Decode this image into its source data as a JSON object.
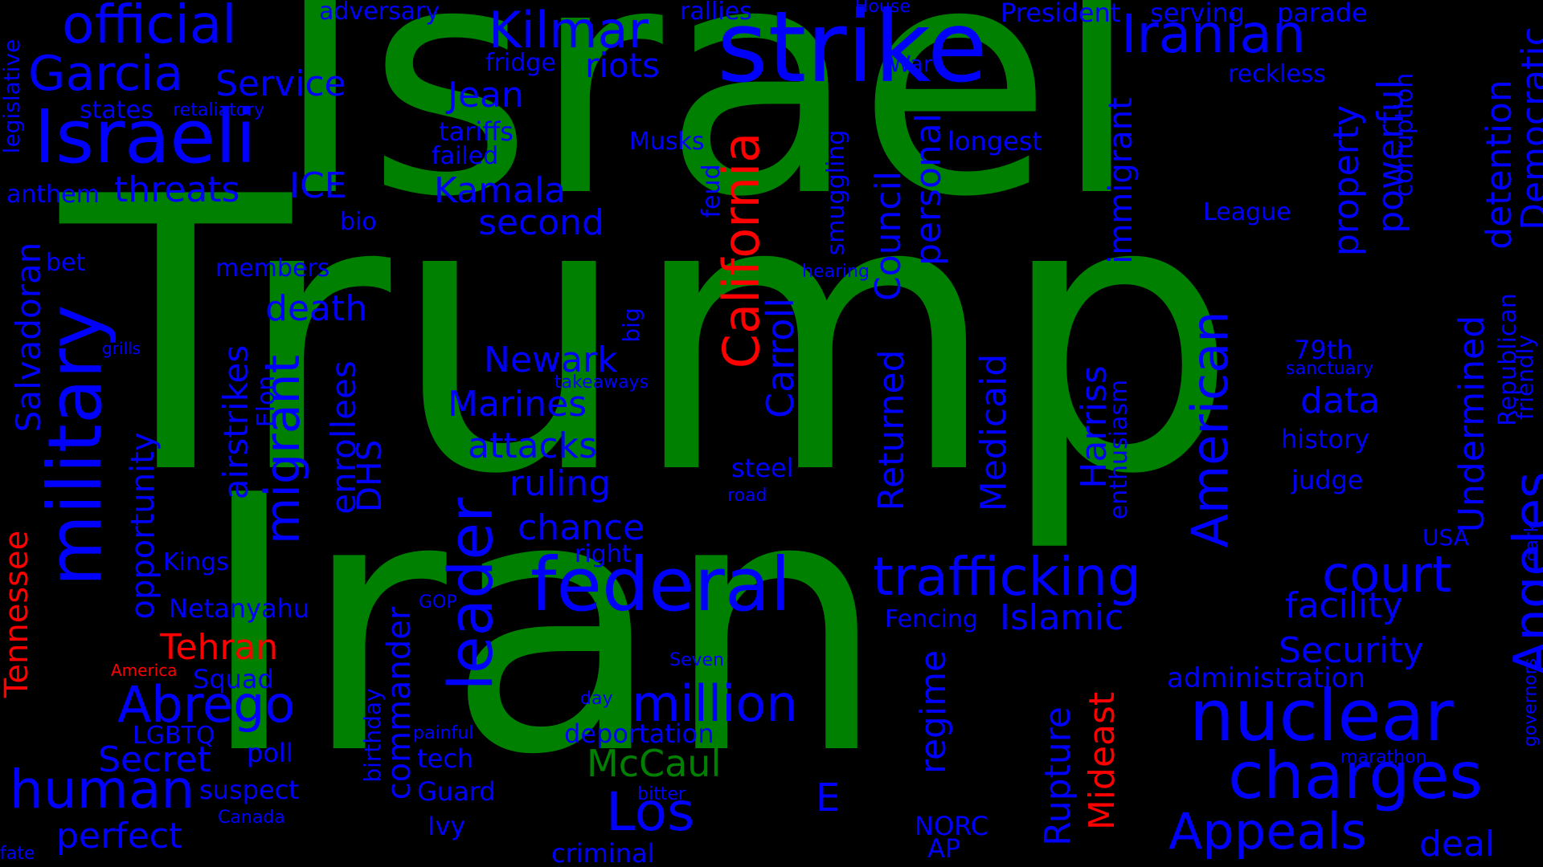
{
  "colors": {
    "background": "#000000",
    "green": "#008000",
    "blue": "#0000ff",
    "red": "#ff0000"
  },
  "words": [
    {
      "key": "trump",
      "text": "Trump",
      "color": "green"
    },
    {
      "key": "israel",
      "text": "Israel",
      "color": "green"
    },
    {
      "key": "iran",
      "text": "Iran",
      "color": "green"
    },
    {
      "key": "strike",
      "text": "strike",
      "color": "blue"
    },
    {
      "key": "iranian",
      "text": "Iranian",
      "color": "blue"
    },
    {
      "key": "official",
      "text": "official",
      "color": "blue"
    },
    {
      "key": "kilmar",
      "text": "Kilmar",
      "color": "blue"
    },
    {
      "key": "garcia",
      "text": "Garcia",
      "color": "blue"
    },
    {
      "key": "service",
      "text": "Service",
      "color": "blue"
    },
    {
      "key": "israeli",
      "text": "Israeli",
      "color": "blue"
    },
    {
      "key": "adversary",
      "text": "adversary",
      "color": "blue"
    },
    {
      "key": "rallies",
      "text": "rallies",
      "color": "blue"
    },
    {
      "key": "house",
      "text": "House",
      "color": "blue"
    },
    {
      "key": "president",
      "text": "President",
      "color": "blue"
    },
    {
      "key": "serving",
      "text": "serving",
      "color": "blue"
    },
    {
      "key": "parade",
      "text": "parade",
      "color": "blue"
    },
    {
      "key": "fridge",
      "text": "fridge",
      "color": "blue"
    },
    {
      "key": "riots",
      "text": "riots",
      "color": "blue"
    },
    {
      "key": "war",
      "text": "War",
      "color": "blue"
    },
    {
      "key": "reckless",
      "text": "reckless",
      "color": "blue"
    },
    {
      "key": "jean",
      "text": "Jean",
      "color": "blue"
    },
    {
      "key": "states",
      "text": "states",
      "color": "blue"
    },
    {
      "key": "retaliatory",
      "text": "retaliatory",
      "color": "blue"
    },
    {
      "key": "tariffs",
      "text": "tariffs",
      "color": "blue"
    },
    {
      "key": "failed",
      "text": "failed",
      "color": "blue"
    },
    {
      "key": "musks",
      "text": "Musks",
      "color": "blue"
    },
    {
      "key": "longest",
      "text": "longest",
      "color": "blue"
    },
    {
      "key": "threats",
      "text": "threats",
      "color": "blue"
    },
    {
      "key": "ice",
      "text": "ICE",
      "color": "blue"
    },
    {
      "key": "kamala",
      "text": "Kamala",
      "color": "blue"
    },
    {
      "key": "anthem",
      "text": "anthem",
      "color": "blue"
    },
    {
      "key": "bio",
      "text": "bio",
      "color": "blue"
    },
    {
      "key": "second",
      "text": "second",
      "color": "blue"
    },
    {
      "key": "league",
      "text": "League",
      "color": "blue"
    },
    {
      "key": "members",
      "text": "members",
      "color": "blue"
    },
    {
      "key": "hearing",
      "text": "hearing",
      "color": "blue"
    },
    {
      "key": "bet",
      "text": "bet",
      "color": "blue"
    },
    {
      "key": "death",
      "text": "death",
      "color": "blue"
    },
    {
      "key": "grills",
      "text": "grills",
      "color": "blue"
    },
    {
      "key": "newark",
      "text": "Newark",
      "color": "blue"
    },
    {
      "key": "takeaways",
      "text": "takeaways",
      "color": "blue"
    },
    {
      "key": "79th",
      "text": "79th",
      "color": "blue"
    },
    {
      "key": "sanctuary",
      "text": "sanctuary",
      "color": "blue"
    },
    {
      "key": "marines",
      "text": "Marines",
      "color": "blue"
    },
    {
      "key": "data",
      "text": "data",
      "color": "blue"
    },
    {
      "key": "history",
      "text": "history",
      "color": "blue"
    },
    {
      "key": "attacks",
      "text": "attacks",
      "color": "blue"
    },
    {
      "key": "steel",
      "text": "steel",
      "color": "blue"
    },
    {
      "key": "judge",
      "text": "judge",
      "color": "blue"
    },
    {
      "key": "ruling",
      "text": "ruling",
      "color": "blue"
    },
    {
      "key": "road",
      "text": "road",
      "color": "blue"
    },
    {
      "key": "chance",
      "text": "chance",
      "color": "blue"
    },
    {
      "key": "usa",
      "text": "USA",
      "color": "blue"
    },
    {
      "key": "kings",
      "text": "Kings",
      "color": "blue"
    },
    {
      "key": "right",
      "text": "right",
      "color": "blue"
    },
    {
      "key": "federal",
      "text": "federal",
      "color": "blue"
    },
    {
      "key": "trafficking",
      "text": "trafficking",
      "color": "blue"
    },
    {
      "key": "court",
      "text": "court",
      "color": "blue"
    },
    {
      "key": "facility",
      "text": "facility",
      "color": "blue"
    },
    {
      "key": "netanyahu",
      "text": "Netanyahu",
      "color": "blue"
    },
    {
      "key": "gop",
      "text": "GOP",
      "color": "blue"
    },
    {
      "key": "fencing",
      "text": "Fencing",
      "color": "blue"
    },
    {
      "key": "islamic",
      "text": "Islamic",
      "color": "blue"
    },
    {
      "key": "security",
      "text": "Security",
      "color": "blue"
    },
    {
      "key": "tehran",
      "text": "Tehran",
      "color": "red"
    },
    {
      "key": "america",
      "text": "America",
      "color": "red"
    },
    {
      "key": "squad",
      "text": "Squad",
      "color": "blue"
    },
    {
      "key": "seven",
      "text": "Seven",
      "color": "blue"
    },
    {
      "key": "administration",
      "text": "administration",
      "color": "blue"
    },
    {
      "key": "abrego",
      "text": "Abrego",
      "color": "blue"
    },
    {
      "key": "million",
      "text": "million",
      "color": "blue"
    },
    {
      "key": "day",
      "text": "day",
      "color": "blue"
    },
    {
      "key": "nuclear",
      "text": "nuclear",
      "color": "blue"
    },
    {
      "key": "lgbtq",
      "text": "LGBTQ",
      "color": "blue"
    },
    {
      "key": "painful",
      "text": "painful",
      "color": "blue"
    },
    {
      "key": "deportation",
      "text": "deportation",
      "color": "blue"
    },
    {
      "key": "secret",
      "text": "Secret",
      "color": "blue"
    },
    {
      "key": "poll",
      "text": "poll",
      "color": "blue"
    },
    {
      "key": "tech",
      "text": "tech",
      "color": "blue"
    },
    {
      "key": "mccaul",
      "text": "McCaul",
      "color": "green"
    },
    {
      "key": "charges",
      "text": "charges",
      "color": "blue"
    },
    {
      "key": "marathon",
      "text": "marathon",
      "color": "blue"
    },
    {
      "key": "human",
      "text": "human",
      "color": "blue"
    },
    {
      "key": "suspect",
      "text": "suspect",
      "color": "blue"
    },
    {
      "key": "guard",
      "text": "Guard",
      "color": "blue"
    },
    {
      "key": "bitter",
      "text": "bitter",
      "color": "blue"
    },
    {
      "key": "los",
      "text": "Los",
      "color": "blue"
    },
    {
      "key": "e",
      "text": "E",
      "color": "blue"
    },
    {
      "key": "appeals",
      "text": "Appeals",
      "color": "blue"
    },
    {
      "key": "canada",
      "text": "Canada",
      "color": "blue"
    },
    {
      "key": "perfect",
      "text": "perfect",
      "color": "blue"
    },
    {
      "key": "ivy",
      "text": "Ivy",
      "color": "blue"
    },
    {
      "key": "norc",
      "text": "NORC",
      "color": "blue"
    },
    {
      "key": "deal",
      "text": "deal",
      "color": "blue"
    },
    {
      "key": "ap",
      "text": "AP",
      "color": "blue"
    },
    {
      "key": "fate",
      "text": "fate",
      "color": "blue"
    },
    {
      "key": "criminal",
      "text": "criminal",
      "color": "blue"
    },
    {
      "key": "military",
      "text": "military",
      "color": "blue"
    },
    {
      "key": "leader",
      "text": "leader",
      "color": "blue"
    },
    {
      "key": "california",
      "text": "California",
      "color": "red"
    },
    {
      "key": "american",
      "text": "American",
      "color": "blue"
    },
    {
      "key": "angeles",
      "text": "Angeles",
      "color": "blue"
    },
    {
      "key": "tennessee",
      "text": "Tennessee",
      "color": "red"
    },
    {
      "key": "salvadoran",
      "text": "Salvadoran",
      "color": "blue"
    },
    {
      "key": "legislative",
      "text": "legislative",
      "color": "blue"
    },
    {
      "key": "opportunity",
      "text": "opportunity",
      "color": "blue"
    },
    {
      "key": "airstrikes",
      "text": "airstrikes",
      "color": "blue"
    },
    {
      "key": "migrant",
      "text": "migrant",
      "color": "blue"
    },
    {
      "key": "enrollees",
      "text": "enrollees",
      "color": "blue"
    },
    {
      "key": "dhs",
      "text": "DHS",
      "color": "blue"
    },
    {
      "key": "elon",
      "text": "Elon",
      "color": "blue"
    },
    {
      "key": "commander",
      "text": "commander",
      "color": "blue"
    },
    {
      "key": "birthday",
      "text": "birthday",
      "color": "blue"
    },
    {
      "key": "big",
      "text": "big",
      "color": "blue"
    },
    {
      "key": "carroll",
      "text": "Carroll",
      "color": "blue"
    },
    {
      "key": "feud",
      "text": "feud",
      "color": "blue"
    },
    {
      "key": "smuggling",
      "text": "smuggling",
      "color": "blue"
    },
    {
      "key": "council",
      "text": "Council",
      "color": "blue"
    },
    {
      "key": "returned",
      "text": "Returned",
      "color": "blue"
    },
    {
      "key": "personal",
      "text": "personal",
      "color": "blue"
    },
    {
      "key": "regime",
      "text": "regime",
      "color": "blue"
    },
    {
      "key": "medicaid",
      "text": "Medicaid",
      "color": "blue"
    },
    {
      "key": "rupture",
      "text": "Rupture",
      "color": "blue"
    },
    {
      "key": "mideast",
      "text": "Mideast",
      "color": "red"
    },
    {
      "key": "harriss",
      "text": "Harriss",
      "color": "blue"
    },
    {
      "key": "enthusiasm",
      "text": "enthusiasm",
      "color": "blue"
    },
    {
      "key": "immigrant",
      "text": "immigrant",
      "color": "blue"
    },
    {
      "key": "property",
      "text": "property",
      "color": "blue"
    },
    {
      "key": "powerful",
      "text": "powerful",
      "color": "blue"
    },
    {
      "key": "corruption",
      "text": "corruption",
      "color": "blue"
    },
    {
      "key": "undermined",
      "text": "Undermined",
      "color": "blue"
    },
    {
      "key": "republican",
      "text": "Republican",
      "color": "blue"
    },
    {
      "key": "detention",
      "text": "detention",
      "color": "blue"
    },
    {
      "key": "democratic",
      "text": "Democratic",
      "color": "blue"
    },
    {
      "key": "friendly",
      "text": "friendly",
      "color": "blue"
    },
    {
      "key": "dark",
      "text": "dark",
      "color": "blue"
    },
    {
      "key": "governors",
      "text": "governors",
      "color": "blue"
    }
  ]
}
